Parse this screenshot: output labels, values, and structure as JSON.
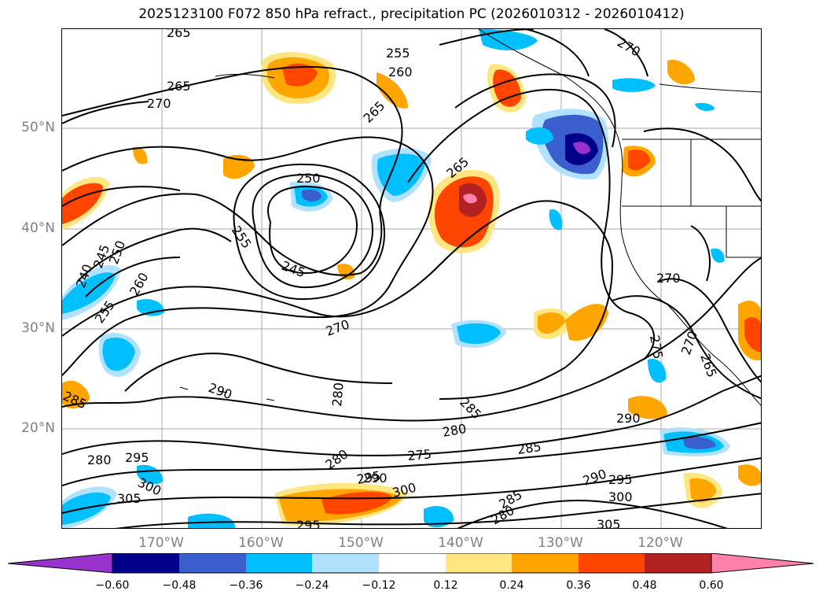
{
  "title": "2025123100 F072 850 hPa refract., precipitation PC (2026010312 - 2026010412)",
  "lat_labels": [
    "50°N",
    "40°N",
    "30°N",
    "20°N"
  ],
  "lon_labels": [
    "170°W",
    "160°W",
    "150°W",
    "140°W",
    "130°W",
    "120°W"
  ],
  "colorbar": {
    "ticks": [
      "−0.60",
      "−0.48",
      "−0.36",
      "−0.24",
      "−0.12",
      "0.12",
      "0.24",
      "0.36",
      "0.48",
      "0.60"
    ],
    "colors": [
      "#9932cc",
      "#00008b",
      "#3a5fcd",
      "#00bfff",
      "#b0e2ff",
      "#ffffff",
      "#ffe680",
      "#ffa500",
      "#ff4500",
      "#b22222",
      "#ff82ab"
    ]
  },
  "contour_labels": [
    "265",
    "255",
    "260",
    "265",
    "270",
    "265",
    "270",
    "265",
    "250",
    "255",
    "245",
    "240",
    "245",
    "250",
    "260",
    "255",
    "270",
    "270",
    "275",
    "270",
    "265",
    "280",
    "285",
    "290",
    "285",
    "280",
    "280",
    "275",
    "285",
    "290",
    "295",
    "280",
    "295",
    "300",
    "305",
    "290",
    "300",
    "295",
    "290",
    "300",
    "285",
    "280",
    "305",
    "295"
  ]
}
